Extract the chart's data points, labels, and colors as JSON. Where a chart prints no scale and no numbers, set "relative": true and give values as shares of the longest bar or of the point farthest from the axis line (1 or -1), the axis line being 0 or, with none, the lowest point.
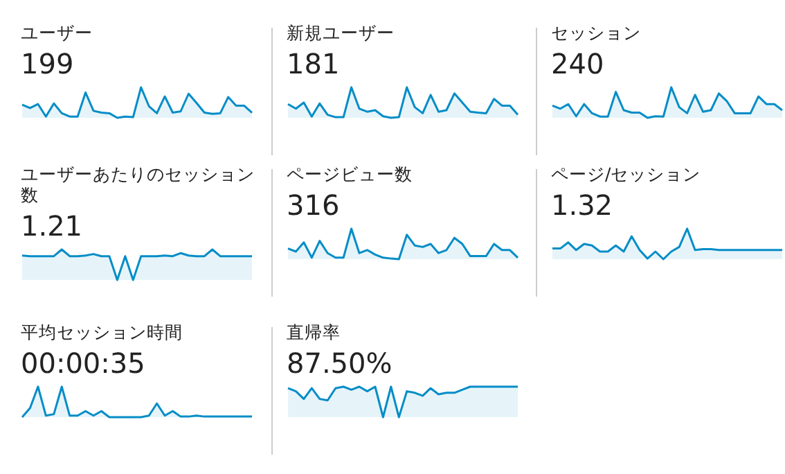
{
  "chart_data": [
    {
      "type": "area",
      "relative": true,
      "title": "ユーザー",
      "subtitle": "199",
      "color": "#058dc7",
      "categories": [
        null,
        null,
        null,
        null,
        null,
        null,
        null,
        null,
        null,
        null,
        null,
        null,
        null,
        null,
        null,
        null,
        null,
        null,
        null,
        null,
        null,
        null,
        null,
        null,
        null,
        null,
        null,
        null,
        null,
        null
      ],
      "values": [
        0.43,
        0.32,
        0.45,
        0.04,
        0.47,
        0.15,
        0.04,
        0.04,
        0.83,
        0.23,
        0.17,
        0.15,
        0,
        0.04,
        0.02,
        1,
        0.38,
        0.15,
        0.7,
        0.17,
        0.21,
        0.79,
        0.49,
        0.17,
        0.13,
        0.15,
        0.68,
        0.4,
        0.4,
        0.17
      ]
    },
    {
      "type": "area",
      "relative": true,
      "title": "新規ユーザー",
      "subtitle": "181",
      "color": "#058dc7",
      "categories": [
        null,
        null,
        null,
        null,
        null,
        null,
        null,
        null,
        null,
        null,
        null,
        null,
        null,
        null,
        null,
        null,
        null,
        null,
        null,
        null,
        null,
        null,
        null,
        null,
        null,
        null,
        null,
        null,
        null,
        null
      ],
      "values": [
        0.45,
        0.3,
        0.5,
        0.04,
        0.47,
        0.1,
        0.02,
        0.02,
        1,
        0.3,
        0.2,
        0.25,
        0.05,
        0,
        0.02,
        1,
        0.35,
        0.15,
        0.75,
        0.2,
        0.25,
        0.8,
        0.5,
        0.2,
        0.17,
        0.15,
        0.62,
        0.4,
        0.4,
        0.1
      ]
    },
    {
      "type": "area",
      "relative": true,
      "title": "セッション",
      "subtitle": "240",
      "color": "#058dc7",
      "categories": [
        null,
        null,
        null,
        null,
        null,
        null,
        null,
        null,
        null,
        null,
        null,
        null,
        null,
        null,
        null,
        null,
        null,
        null,
        null,
        null,
        null,
        null,
        null,
        null,
        null,
        null,
        null,
        null,
        null,
        null
      ],
      "values": [
        0.4,
        0.3,
        0.45,
        0.05,
        0.45,
        0.15,
        0.04,
        0.04,
        0.85,
        0.25,
        0.17,
        0.17,
        0,
        0.05,
        0.04,
        1,
        0.35,
        0.15,
        0.75,
        0.2,
        0.25,
        0.8,
        0.55,
        0.15,
        0.15,
        0.15,
        0.7,
        0.45,
        0.45,
        0.25
      ]
    },
    {
      "type": "area",
      "relative": true,
      "title": "ユーザーあたりのセッション数",
      "subtitle": "1.21",
      "color": "#058dc7",
      "categories": [
        null,
        null,
        null,
        null,
        null,
        null,
        null,
        null,
        null,
        null,
        null,
        null,
        null,
        null,
        null,
        null,
        null,
        null,
        null,
        null,
        null,
        null,
        null,
        null,
        null,
        null,
        null,
        null,
        null,
        null
      ],
      "values": [
        0.8,
        0.78,
        0.78,
        0.78,
        0.78,
        1,
        0.78,
        0.78,
        0.8,
        0.85,
        0.78,
        0.78,
        0,
        0.78,
        0,
        0.78,
        0.78,
        0.78,
        0.8,
        0.78,
        0.88,
        0.8,
        0.78,
        0.78,
        1,
        0.78,
        0.78,
        0.78,
        0.78,
        0.78
      ]
    },
    {
      "type": "area",
      "relative": true,
      "title": "ページビュー数",
      "subtitle": "316",
      "color": "#058dc7",
      "categories": [
        null,
        null,
        null,
        null,
        null,
        null,
        null,
        null,
        null,
        null,
        null,
        null,
        null,
        null,
        null,
        null,
        null,
        null,
        null,
        null,
        null,
        null,
        null,
        null,
        null,
        null,
        null,
        null,
        null,
        null
      ],
      "values": [
        0.35,
        0.25,
        0.55,
        0.05,
        0.6,
        0.2,
        0.05,
        0.05,
        1,
        0.2,
        0.3,
        0.15,
        0.05,
        0.02,
        0,
        0.8,
        0.45,
        0.4,
        0.5,
        0.2,
        0.3,
        0.7,
        0.5,
        0.1,
        0.1,
        0.1,
        0.5,
        0.3,
        0.3,
        0.05
      ]
    },
    {
      "type": "area",
      "relative": true,
      "title": "ページ/セッション",
      "subtitle": "1.32",
      "color": "#058dc7",
      "categories": [
        null,
        null,
        null,
        null,
        null,
        null,
        null,
        null,
        null,
        null,
        null,
        null,
        null,
        null,
        null,
        null,
        null,
        null,
        null,
        null,
        null,
        null,
        null,
        null,
        null,
        null,
        null,
        null,
        null,
        null
      ],
      "values": [
        0.35,
        0.35,
        0.55,
        0.3,
        0.5,
        0.45,
        0.25,
        0.25,
        0.45,
        0.25,
        0.75,
        0.3,
        0.02,
        0.25,
        0,
        0.25,
        0.4,
        1,
        0.3,
        0.33,
        0.33,
        0.3,
        0.3,
        0.3,
        0.3,
        0.3,
        0.3,
        0.3,
        0.3,
        0.3
      ]
    },
    {
      "type": "area",
      "relative": true,
      "title": "平均セッション時間",
      "subtitle": "00:00:35",
      "color": "#058dc7",
      "categories": [
        null,
        null,
        null,
        null,
        null,
        null,
        null,
        null,
        null,
        null,
        null,
        null,
        null,
        null,
        null,
        null,
        null,
        null,
        null,
        null,
        null,
        null,
        null,
        null,
        null,
        null,
        null,
        null,
        null,
        null
      ],
      "values": [
        0,
        0.3,
        1,
        0.05,
        0.1,
        1,
        0.05,
        0.05,
        0.2,
        0.05,
        0.2,
        0,
        0,
        0,
        0,
        0,
        0.05,
        0.45,
        0.05,
        0.2,
        0.02,
        0.02,
        0.05,
        0.02,
        0.02,
        0.02,
        0.02,
        0.02,
        0.02,
        0.02
      ]
    },
    {
      "type": "area",
      "relative": true,
      "title": "直帰率",
      "subtitle": "87.50%",
      "color": "#058dc7",
      "categories": [
        null,
        null,
        null,
        null,
        null,
        null,
        null,
        null,
        null,
        null,
        null,
        null,
        null,
        null,
        null,
        null,
        null,
        null,
        null,
        null,
        null,
        null,
        null,
        null,
        null,
        null,
        null,
        null,
        null,
        null
      ],
      "values": [
        0.95,
        0.85,
        0.6,
        0.95,
        0.6,
        0.55,
        0.95,
        1,
        0.9,
        1,
        0.85,
        1,
        0,
        1,
        0,
        0.85,
        0.8,
        0.7,
        0.95,
        0.75,
        0.8,
        0.8,
        0.9,
        1,
        1,
        1,
        1,
        1,
        1,
        1
      ]
    }
  ]
}
